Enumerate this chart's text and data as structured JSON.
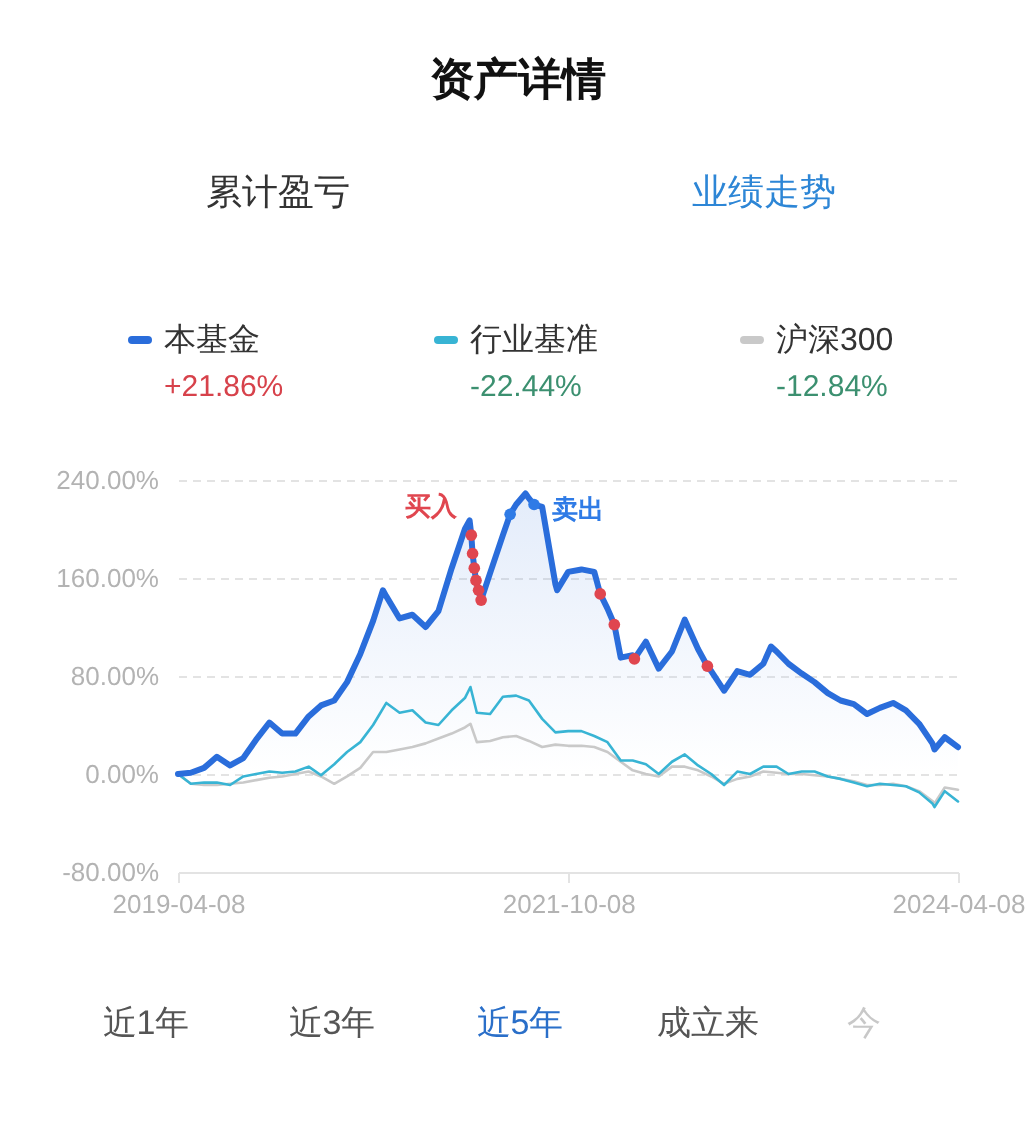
{
  "chart_data": {
    "type": "line",
    "title": "资产详情",
    "annotations": [
      "+21.86%",
      "-22.44%",
      "-12.84%",
      "累计盈亏",
      "业绩走势",
      "近1年",
      "近3年",
      "近5年",
      "成立来",
      "今"
    ],
    "xlim": [
      "2019-04-08",
      "2024-04-08"
    ],
    "xticks": [
      "2019-04-08",
      "2021-10-08",
      "2024-04-08"
    ],
    "ylim": [
      -80,
      240
    ],
    "yticks": [
      {
        "value": 240,
        "label": "240.00%"
      },
      {
        "value": 160,
        "label": "160.00%"
      },
      {
        "value": 80,
        "label": "80.00%"
      },
      {
        "value": 0,
        "label": "0.00%"
      },
      {
        "value": -80,
        "label": "-80.00%"
      }
    ],
    "grid": "y",
    "legend": "top",
    "x": [
      "2019-04-08",
      "2019-05-08",
      "2019-06-08",
      "2019-07-08",
      "2019-08-08",
      "2019-09-08",
      "2019-10-08",
      "2019-11-08",
      "2019-12-08",
      "2020-01-08",
      "2020-02-08",
      "2020-03-08",
      "2020-04-08",
      "2020-05-08",
      "2020-06-08",
      "2020-07-08",
      "2020-08-08",
      "2020-09-08",
      "2020-10-08",
      "2020-11-08",
      "2020-12-08",
      "2021-01-08",
      "2021-02-08",
      "2021-02-21",
      "2021-03-08",
      "2021-04-08",
      "2021-05-08",
      "2021-06-08",
      "2021-07-08",
      "2021-08-08",
      "2021-09-08",
      "2021-10-08",
      "2021-11-08",
      "2021-12-08",
      "2022-01-08",
      "2022-02-08",
      "2022-03-08",
      "2022-04-08",
      "2022-05-08",
      "2022-06-08",
      "2022-07-08",
      "2022-08-08",
      "2022-09-08",
      "2022-10-08",
      "2022-11-08",
      "2022-12-08",
      "2023-01-08",
      "2023-02-08",
      "2023-03-08",
      "2023-04-08",
      "2023-05-08",
      "2023-06-08",
      "2023-07-08",
      "2023-08-08",
      "2023-09-08",
      "2023-10-08",
      "2023-11-08",
      "2023-12-08",
      "2024-01-08",
      "2024-02-08",
      "2024-02-13",
      "2024-03-08",
      "2024-04-08"
    ],
    "series": [
      {
        "name": "本基金",
        "type": "area",
        "color": "#2a6ddb",
        "x": [
          "2019-04-08",
          "2019-05-08",
          "2019-06-08",
          "2019-07-08",
          "2019-08-08",
          "2019-09-08",
          "2019-10-08",
          "2019-11-08",
          "2019-12-08",
          "2020-01-08",
          "2020-02-08",
          "2020-03-08",
          "2020-04-08",
          "2020-05-08",
          "2020-06-08",
          "2020-07-08",
          "2020-07-31",
          "2020-08-08",
          "2020-09-08",
          "2020-10-08",
          "2020-11-08",
          "2020-12-08",
          "2021-01-08",
          "2021-02-08",
          "2021-02-19",
          "2021-02-23",
          "2021-02-26",
          "2021-03-02",
          "2021-03-06",
          "2021-03-12",
          "2021-03-18",
          "2021-04-08",
          "2021-05-08",
          "2021-05-25",
          "2021-06-08",
          "2021-06-30",
          "2021-07-08",
          "2021-07-20",
          "2021-08-08",
          "2021-09-08",
          "2021-09-12",
          "2021-10-08",
          "2021-11-08",
          "2021-12-08",
          "2021-12-22",
          "2022-01-08",
          "2022-01-24",
          "2022-02-08",
          "2022-03-08",
          "2022-03-12",
          "2022-04-08",
          "2022-05-08",
          "2022-06-08",
          "2022-07-08",
          "2022-08-08",
          "2022-08-30",
          "2022-09-08",
          "2022-10-08",
          "2022-11-08",
          "2022-12-08",
          "2023-01-08",
          "2023-01-26",
          "2023-02-08",
          "2023-03-08",
          "2023-04-08",
          "2023-05-08",
          "2023-06-08",
          "2023-07-08",
          "2023-08-08",
          "2023-09-08",
          "2023-10-08",
          "2023-11-08",
          "2023-12-08",
          "2024-01-08",
          "2024-02-08",
          "2024-02-13",
          "2024-03-08",
          "2024-04-08"
        ],
        "values": [
          0,
          1,
          5,
          14,
          7,
          13,
          28,
          42,
          33,
          33,
          47,
          56,
          60,
          75,
          98,
          125,
          150,
          145,
          127,
          130,
          120,
          133,
          168,
          200,
          207,
          195,
          180,
          168,
          158,
          150,
          142,
          164,
          195,
          212,
          220,
          229,
          225,
          220,
          218,
          155,
          150,
          165,
          167,
          165,
          147,
          135,
          122,
          95,
          97,
          94,
          108,
          86,
          100,
          126,
          102,
          88,
          84,
          68,
          84,
          81,
          90,
          104,
          100,
          90,
          82,
          75,
          66,
          60,
          57,
          49,
          54,
          58,
          52,
          41,
          25,
          20,
          30,
          21.86
        ]
      },
      {
        "name": "行业基准",
        "color": "#38b4d4",
        "values": [
          0,
          -8,
          -7,
          -7,
          -9,
          -2,
          0,
          2,
          1,
          2,
          6,
          -1,
          8,
          18,
          26,
          40,
          58,
          50,
          52,
          42,
          40,
          52,
          62,
          71,
          50,
          49,
          63,
          64,
          60,
          45,
          34,
          35,
          35,
          31,
          26,
          11,
          11,
          8,
          0,
          10,
          16,
          7,
          0,
          -9,
          2,
          0,
          6,
          6,
          0,
          2,
          2,
          -2,
          -4,
          -7,
          -10,
          -8,
          -9,
          -10,
          -15,
          -24,
          -27,
          -14,
          -22.44
        ]
      },
      {
        "name": "沪深300",
        "color": "#c9c9c9",
        "values": [
          0,
          -8,
          -9,
          -9,
          -8,
          -7,
          -5,
          -3,
          -2,
          0,
          2,
          -2,
          -8,
          -2,
          5,
          18,
          18,
          20,
          22,
          25,
          29,
          33,
          38,
          41,
          26,
          27,
          30,
          31,
          27,
          22,
          24,
          23,
          23,
          22,
          18,
          10,
          3,
          0,
          -2,
          6,
          6,
          3,
          -2,
          -8,
          -4,
          -2,
          2,
          1,
          0,
          0,
          -1,
          -2,
          -4,
          -6,
          -9,
          -9,
          -8,
          -10,
          -14,
          -22,
          -24,
          -11,
          -12.84
        ]
      },
      {
        "name": "买入",
        "type": "scatter",
        "color": "#e0464f",
        "x": [
          "2021-02-23",
          "2021-02-26",
          "2021-03-02",
          "2021-03-06",
          "2021-03-12",
          "2021-03-18",
          "2021-12-22",
          "2022-01-24",
          "2022-03-12",
          "2022-08-30"
        ],
        "values": [
          195,
          180,
          168,
          158,
          150,
          142,
          147,
          122,
          94,
          88
        ]
      },
      {
        "name": "卖出",
        "type": "scatter",
        "color": "#2f7be6",
        "x": [
          "2021-05-25",
          "2021-07-20"
        ],
        "values": [
          212,
          220
        ]
      }
    ]
  }
}
